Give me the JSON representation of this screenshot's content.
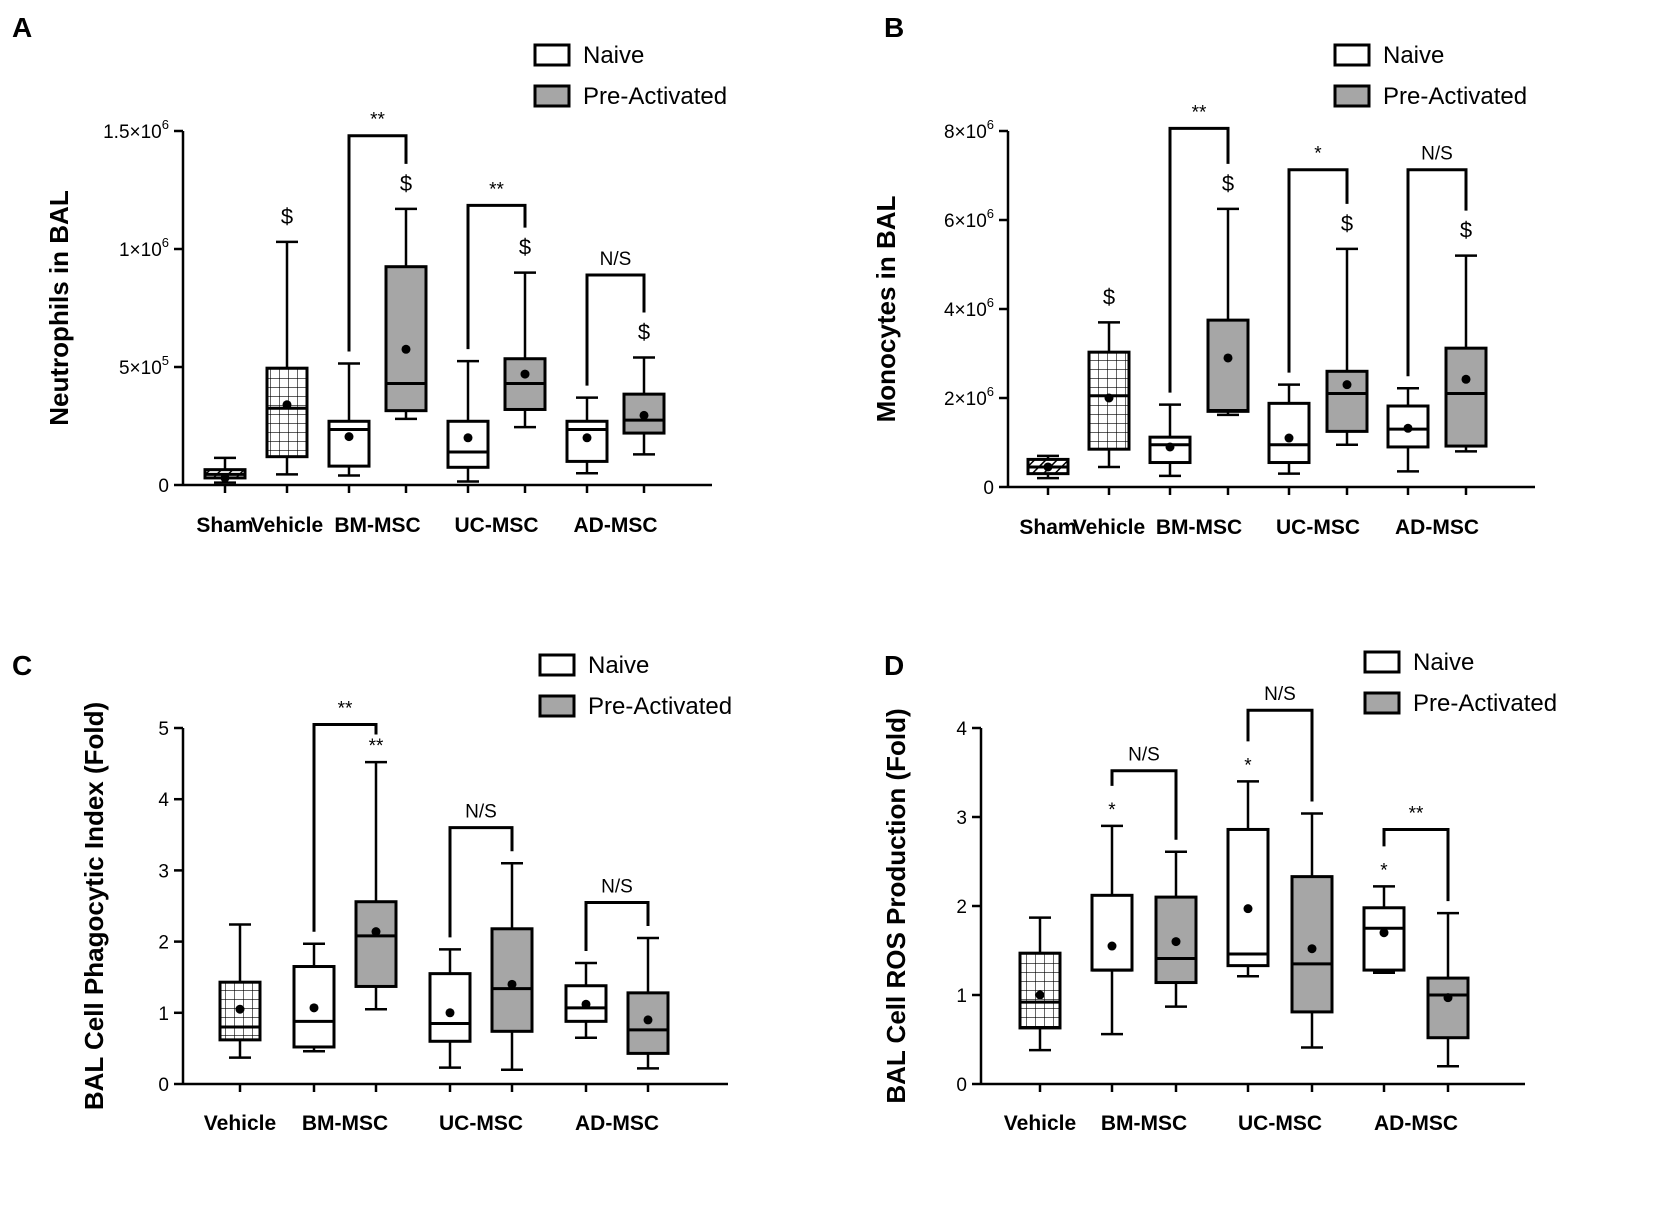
{
  "colors": {
    "naive_fill": "#ffffff",
    "preactivated_fill": "#a6a6a6",
    "stroke": "#000000"
  },
  "legend": {
    "naive": "Naive",
    "preactivated": "Pre-Activated"
  },
  "chart_data": [
    {
      "panel": "A",
      "type": "box",
      "ylabel": "Neutrophils in BAL",
      "ylim": [
        0,
        1500000
      ],
      "yticks": [
        {
          "value": 0,
          "label": "0"
        },
        {
          "value": 500000,
          "label": "5×10",
          "exp": "5"
        },
        {
          "value": 1000000,
          "label": "1×10",
          "exp": "6"
        },
        {
          "value": 1500000,
          "label": "1.5×10",
          "exp": "6"
        }
      ],
      "categories": [
        {
          "label": "Sham",
          "slots": 1
        },
        {
          "label": "Vehicle",
          "slots": 1
        },
        {
          "label": "BM-MSC",
          "slots": 2
        },
        {
          "label": "UC-MSC",
          "slots": 2
        },
        {
          "label": "AD-MSC",
          "slots": 2
        }
      ],
      "boxes": [
        {
          "group": "Sham",
          "series": "sham",
          "fill": "hatch",
          "min": 10000,
          "q1": 30000,
          "median": 45000,
          "q3": 65000,
          "max": 115000,
          "mean": 30000
        },
        {
          "group": "Vehicle",
          "series": "vehicle",
          "fill": "grid",
          "min": 45000,
          "q1": 120000,
          "median": 325000,
          "q3": 495000,
          "max": 1030000,
          "mean": 340000,
          "mark": "$"
        },
        {
          "group": "BM-MSC",
          "series": "Naive",
          "fill": "naive",
          "min": 40000,
          "q1": 80000,
          "median": 235000,
          "q3": 270000,
          "max": 515000,
          "mean": 205000
        },
        {
          "group": "BM-MSC",
          "series": "Pre-Activated",
          "fill": "pre",
          "min": 280000,
          "q1": 315000,
          "median": 430000,
          "q3": 925000,
          "max": 1170000,
          "mean": 575000,
          "mark": "$"
        },
        {
          "group": "UC-MSC",
          "series": "Naive",
          "fill": "naive",
          "min": 15000,
          "q1": 75000,
          "median": 140000,
          "q3": 270000,
          "max": 525000,
          "mean": 200000
        },
        {
          "group": "UC-MSC",
          "series": "Pre-Activated",
          "fill": "pre",
          "min": 245000,
          "q1": 320000,
          "median": 430000,
          "q3": 535000,
          "max": 900000,
          "mean": 470000,
          "mark": "$"
        },
        {
          "group": "AD-MSC",
          "series": "Naive",
          "fill": "naive",
          "min": 50000,
          "q1": 100000,
          "median": 235000,
          "q3": 270000,
          "max": 370000,
          "mean": 200000
        },
        {
          "group": "AD-MSC",
          "series": "Pre-Activated",
          "fill": "pre",
          "min": 130000,
          "q1": 220000,
          "median": 275000,
          "q3": 385000,
          "max": 540000,
          "mean": 295000,
          "mark": "$"
        }
      ],
      "comparisons": [
        {
          "group": "BM-MSC",
          "label": "**",
          "y": 1480000
        },
        {
          "group": "UC-MSC",
          "label": "**",
          "y": 1185000
        },
        {
          "group": "AD-MSC",
          "label": "N/S",
          "y": 890000
        }
      ]
    },
    {
      "panel": "B",
      "type": "box",
      "ylabel": "Monocytes in BAL",
      "ylim": [
        0,
        8000000
      ],
      "yticks": [
        {
          "value": 0,
          "label": "0"
        },
        {
          "value": 2000000,
          "label": "2×10",
          "exp": "6"
        },
        {
          "value": 4000000,
          "label": "4×10",
          "exp": "6"
        },
        {
          "value": 6000000,
          "label": "6×10",
          "exp": "6"
        },
        {
          "value": 8000000,
          "label": "8×10",
          "exp": "6"
        }
      ],
      "categories": [
        {
          "label": "Sham",
          "slots": 1
        },
        {
          "label": "Vehicle",
          "slots": 1
        },
        {
          "label": "BM-MSC",
          "slots": 2
        },
        {
          "label": "UC-MSC",
          "slots": 2
        },
        {
          "label": "AD-MSC",
          "slots": 2
        }
      ],
      "boxes": [
        {
          "group": "Sham",
          "series": "sham",
          "fill": "hatch",
          "min": 200000,
          "q1": 300000,
          "median": 450000,
          "q3": 620000,
          "max": 700000,
          "mean": 450000
        },
        {
          "group": "Vehicle",
          "series": "vehicle",
          "fill": "grid",
          "min": 450000,
          "q1": 850000,
          "median": 2050000,
          "q3": 3030000,
          "max": 3700000,
          "mean": 2000000,
          "mark": "$"
        },
        {
          "group": "BM-MSC",
          "series": "Naive",
          "fill": "naive",
          "min": 250000,
          "q1": 550000,
          "median": 950000,
          "q3": 1120000,
          "max": 1850000,
          "mean": 900000
        },
        {
          "group": "BM-MSC",
          "series": "Pre-Activated",
          "fill": "pre",
          "min": 1620000,
          "q1": 1700000,
          "median": 1720000,
          "q3": 3750000,
          "max": 6250000,
          "mean": 2900000,
          "mark": "$"
        },
        {
          "group": "UC-MSC",
          "series": "Naive",
          "fill": "naive",
          "min": 300000,
          "q1": 550000,
          "median": 950000,
          "q3": 1880000,
          "max": 2300000,
          "mean": 1100000
        },
        {
          "group": "UC-MSC",
          "series": "Pre-Activated",
          "fill": "pre",
          "min": 950000,
          "q1": 1250000,
          "median": 2100000,
          "q3": 2600000,
          "max": 5350000,
          "mean": 2300000,
          "mark": "$"
        },
        {
          "group": "AD-MSC",
          "series": "Naive",
          "fill": "naive",
          "min": 350000,
          "q1": 900000,
          "median": 1300000,
          "q3": 1820000,
          "max": 2220000,
          "mean": 1320000
        },
        {
          "group": "AD-MSC",
          "series": "Pre-Activated",
          "fill": "pre",
          "min": 800000,
          "q1": 920000,
          "median": 2100000,
          "q3": 3120000,
          "max": 5200000,
          "mean": 2420000,
          "mark": "$"
        }
      ],
      "comparisons": [
        {
          "group": "BM-MSC",
          "label": "**",
          "y": 8060000
        },
        {
          "group": "UC-MSC",
          "label": "*",
          "y": 7130000
        },
        {
          "group": "AD-MSC",
          "label": "N/S",
          "y": 7130000
        }
      ]
    },
    {
      "panel": "C",
      "type": "box",
      "ylabel": "BAL Cell Phagocytic Index (Fold)",
      "ylim": [
        0,
        5
      ],
      "yticks": [
        {
          "value": 0,
          "label": "0"
        },
        {
          "value": 1,
          "label": "1"
        },
        {
          "value": 2,
          "label": "2"
        },
        {
          "value": 3,
          "label": "3"
        },
        {
          "value": 4,
          "label": "4"
        },
        {
          "value": 5,
          "label": "5"
        }
      ],
      "categories": [
        {
          "label": "Vehicle",
          "slots": 1
        },
        {
          "label": "BM-MSC",
          "slots": 2
        },
        {
          "label": "UC-MSC",
          "slots": 2
        },
        {
          "label": "AD-MSC",
          "slots": 2
        }
      ],
      "boxes": [
        {
          "group": "Vehicle",
          "series": "vehicle",
          "fill": "grid",
          "min": 0.37,
          "q1": 0.62,
          "median": 0.8,
          "q3": 1.43,
          "max": 2.24,
          "mean": 1.05
        },
        {
          "group": "BM-MSC",
          "series": "Naive",
          "fill": "naive",
          "min": 0.46,
          "q1": 0.52,
          "median": 0.88,
          "q3": 1.65,
          "max": 1.97,
          "mean": 1.07
        },
        {
          "group": "BM-MSC",
          "series": "Pre-Activated",
          "fill": "pre",
          "min": 1.05,
          "q1": 1.37,
          "median": 2.08,
          "q3": 2.56,
          "max": 4.52,
          "mark": "**",
          "mean": 2.14
        },
        {
          "group": "UC-MSC",
          "series": "Naive",
          "fill": "naive",
          "min": 0.23,
          "q1": 0.6,
          "median": 0.85,
          "q3": 1.55,
          "max": 1.89,
          "mean": 1.0
        },
        {
          "group": "UC-MSC",
          "series": "Pre-Activated",
          "fill": "pre",
          "min": 0.2,
          "q1": 0.74,
          "median": 1.34,
          "q3": 2.18,
          "max": 3.1,
          "mean": 1.4
        },
        {
          "group": "AD-MSC",
          "series": "Naive",
          "fill": "naive",
          "min": 0.65,
          "q1": 0.88,
          "median": 1.07,
          "q3": 1.38,
          "max": 1.7,
          "mean": 1.12
        },
        {
          "group": "AD-MSC",
          "series": "Pre-Activated",
          "fill": "pre",
          "min": 0.22,
          "q1": 0.43,
          "median": 0.76,
          "q3": 1.28,
          "max": 2.05,
          "mean": 0.9
        }
      ],
      "comparisons": [
        {
          "group": "BM-MSC",
          "label": "**",
          "y": 5.05
        },
        {
          "group": "UC-MSC",
          "label": "N/S",
          "y": 3.6
        },
        {
          "group": "AD-MSC",
          "label": "N/S",
          "y": 2.55
        }
      ]
    },
    {
      "panel": "D",
      "type": "box",
      "ylabel": "BAL Cell ROS Production (Fold)",
      "ylim": [
        0,
        4
      ],
      "yticks": [
        {
          "value": 0,
          "label": "0"
        },
        {
          "value": 1,
          "label": "1"
        },
        {
          "value": 2,
          "label": "2"
        },
        {
          "value": 3,
          "label": "3"
        },
        {
          "value": 4,
          "label": "4"
        }
      ],
      "categories": [
        {
          "label": "Vehicle",
          "slots": 1
        },
        {
          "label": "BM-MSC",
          "slots": 2
        },
        {
          "label": "UC-MSC",
          "slots": 2
        },
        {
          "label": "AD-MSC",
          "slots": 2
        }
      ],
      "boxes": [
        {
          "group": "Vehicle",
          "series": "vehicle",
          "fill": "grid",
          "min": 0.38,
          "q1": 0.63,
          "median": 0.92,
          "q3": 1.47,
          "max": 1.87,
          "mean": 1.0
        },
        {
          "group": "BM-MSC",
          "series": "Naive",
          "fill": "naive",
          "min": 0.56,
          "q1": 1.28,
          "median": 1.28,
          "q3": 2.12,
          "max": 2.9,
          "mark": "*",
          "mean": 1.55
        },
        {
          "group": "BM-MSC",
          "series": "Pre-Activated",
          "fill": "pre",
          "min": 0.87,
          "q1": 1.14,
          "median": 1.41,
          "q3": 2.1,
          "max": 2.61,
          "mean": 1.6
        },
        {
          "group": "UC-MSC",
          "series": "Naive",
          "fill": "naive",
          "min": 1.21,
          "q1": 1.33,
          "median": 1.46,
          "q3": 2.86,
          "max": 3.4,
          "mark": "*",
          "mean": 1.97
        },
        {
          "group": "UC-MSC",
          "series": "Pre-Activated",
          "fill": "pre",
          "min": 0.41,
          "q1": 0.81,
          "median": 1.35,
          "q3": 2.33,
          "max": 3.04,
          "mean": 1.52
        },
        {
          "group": "AD-MSC",
          "series": "Naive",
          "fill": "naive",
          "min": 1.25,
          "q1": 1.28,
          "median": 1.75,
          "q3": 1.98,
          "max": 2.22,
          "mark": "*",
          "mean": 1.7
        },
        {
          "group": "AD-MSC",
          "series": "Pre-Activated",
          "fill": "pre",
          "min": 0.2,
          "q1": 0.52,
          "median": 1.0,
          "q3": 1.19,
          "max": 1.92,
          "mean": 0.97
        }
      ],
      "comparisons": [
        {
          "group": "BM-MSC",
          "label": "N/S",
          "y": 3.52
        },
        {
          "group": "UC-MSC",
          "label": "N/S",
          "y": 4.2
        },
        {
          "group": "AD-MSC",
          "label": "**",
          "y": 2.86
        }
      ]
    }
  ]
}
